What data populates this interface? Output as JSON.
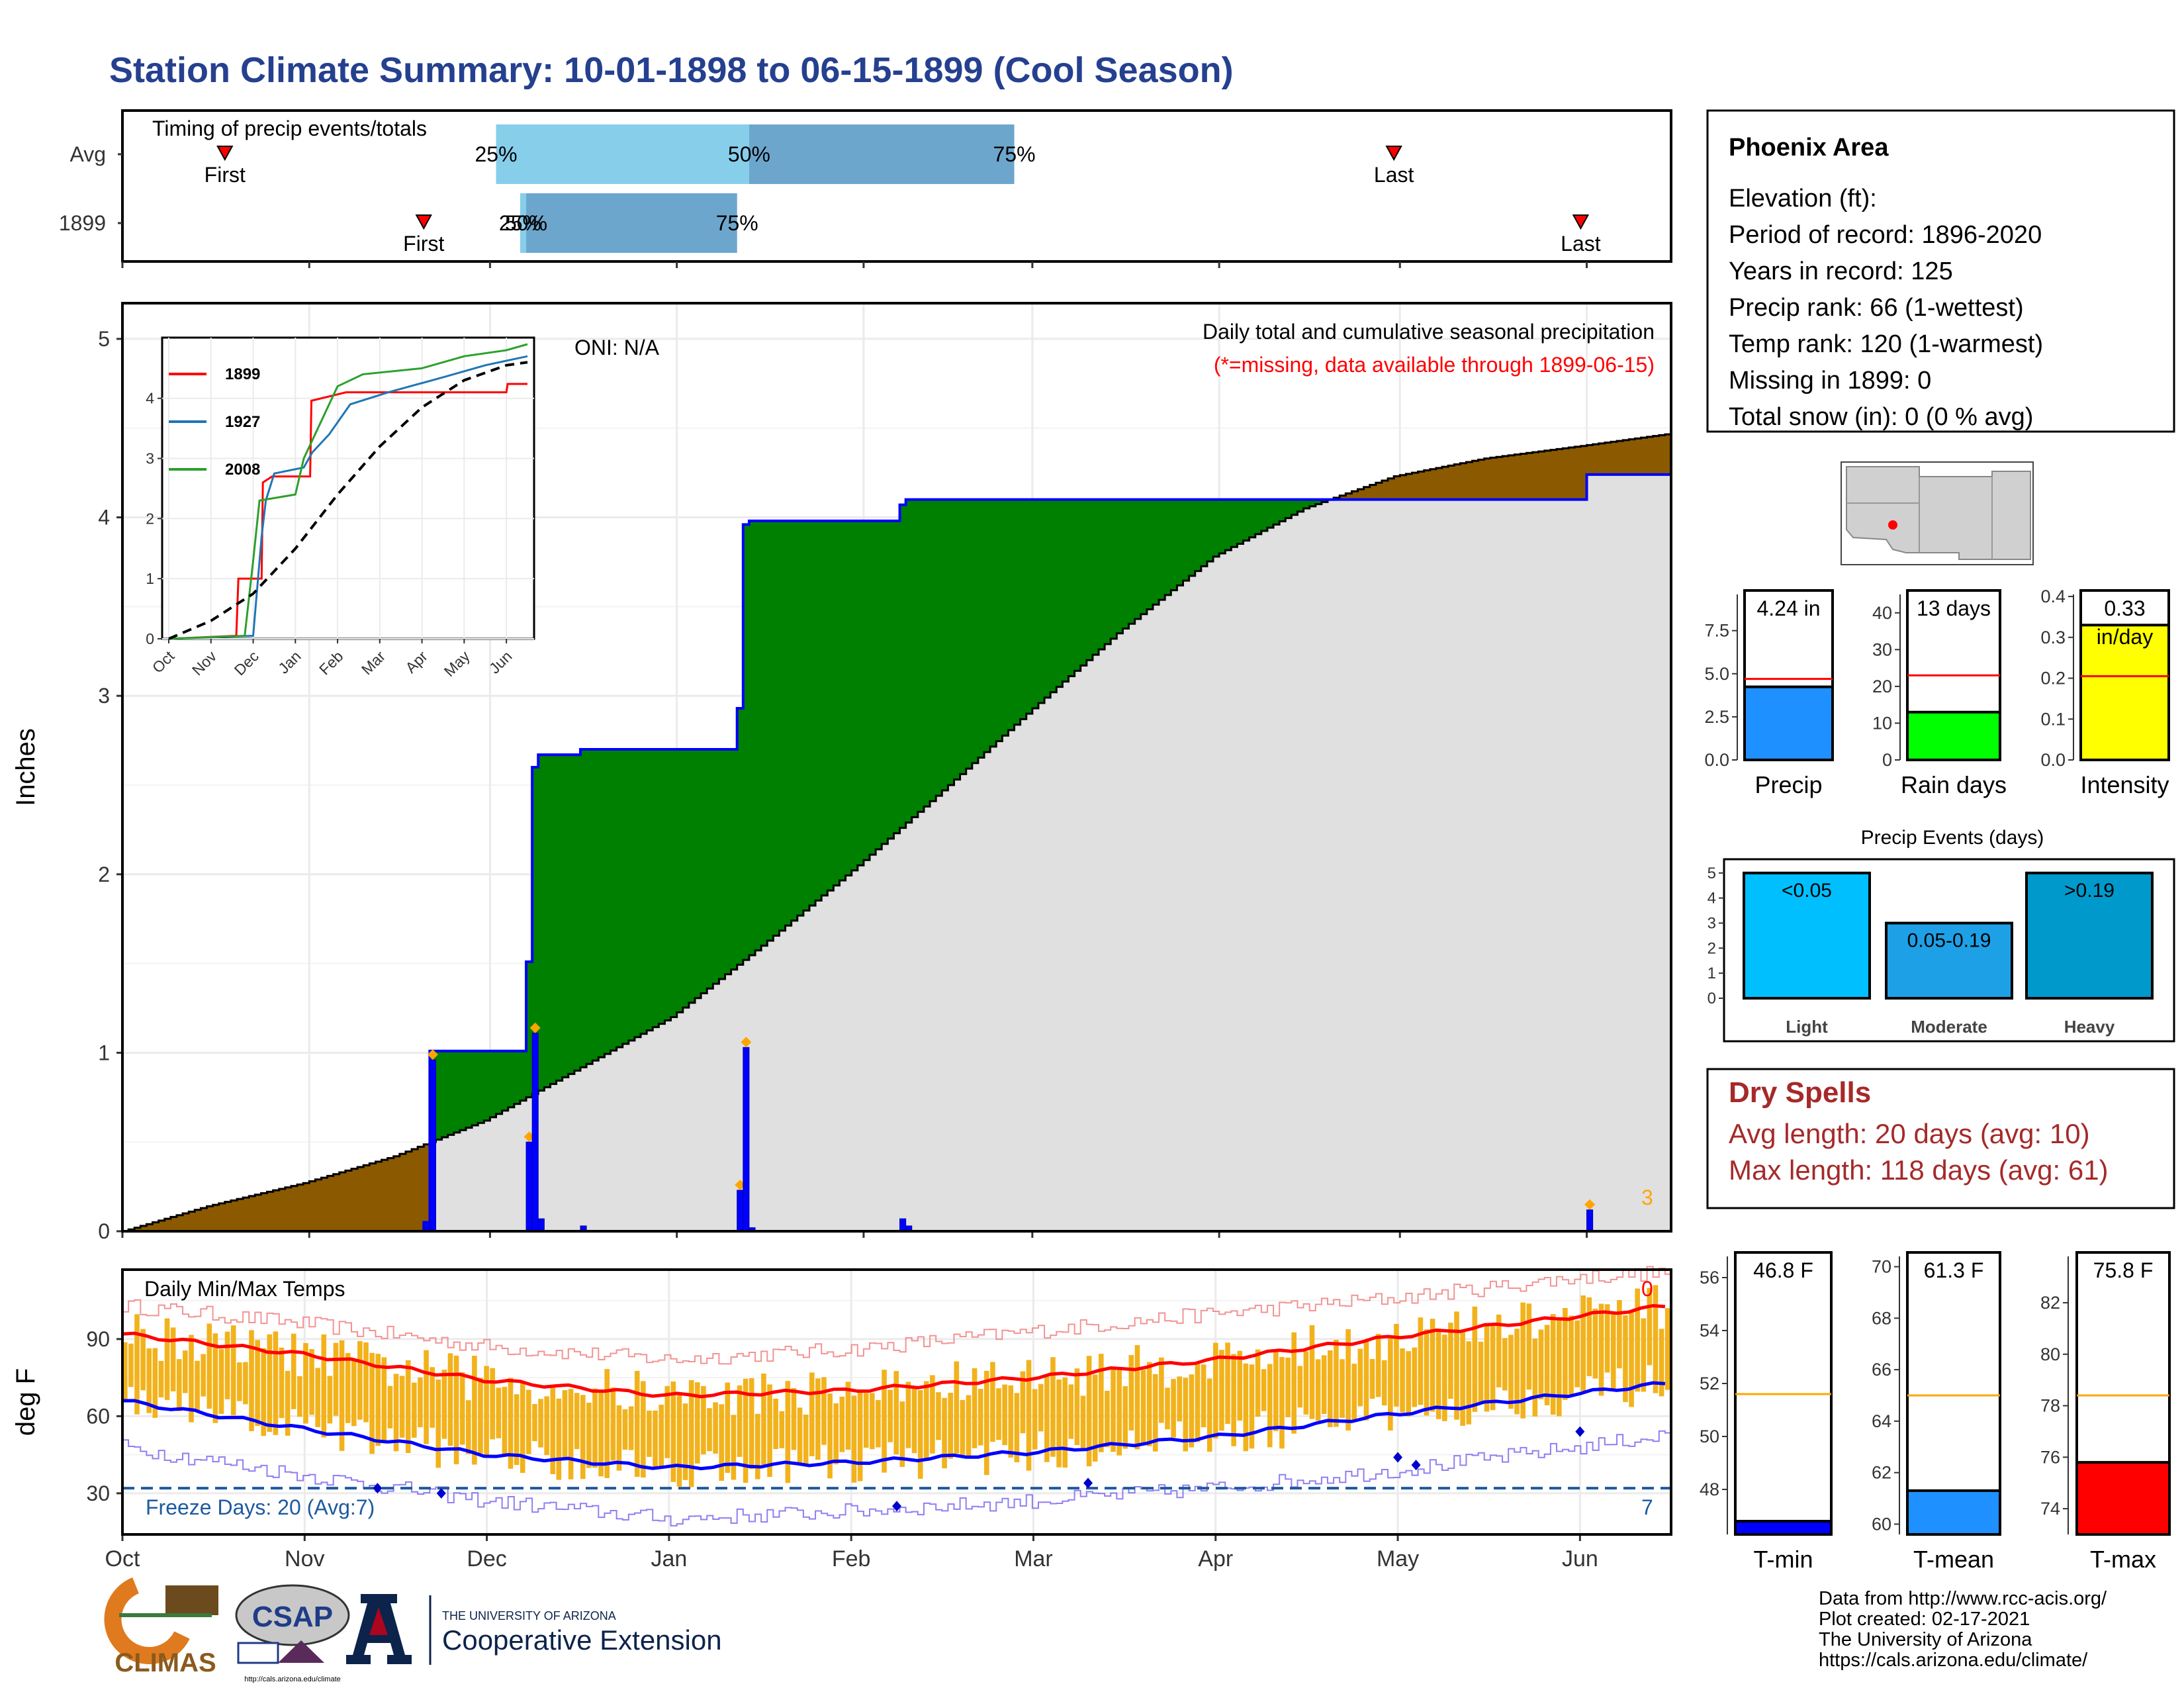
{
  "page": {
    "title": "Station Climate Summary: 10-01-1898 to 06-15-1899 (Cool Season)"
  },
  "colors": {
    "title": "#25408F",
    "brown": "#8B5A00",
    "green": "#008000",
    "gray_area": "#E0E0E0",
    "blue_line": "#0000FF",
    "bar_blue": "#1E90FF",
    "rain_green": "#00FF00",
    "intensity_yellow": "#FFFF00",
    "light_blue": "#00BFFF",
    "moderate_blue": "#1EA0E6",
    "heavy_blue": "#0099CC",
    "temp_bar": "#F2B21C",
    "red": "#FF0000",
    "dry_spell": "#A52A2A",
    "timing_light": "#87CEEB",
    "timing_dark": "#6CA6CD",
    "marker_orange": "#FFA500"
  },
  "timing": {
    "title": "Timing of precip events/totals",
    "rows": [
      {
        "label": "Avg",
        "first": "10-18",
        "last": "04-30",
        "q25": "12-02",
        "q50": "01-13",
        "q75": "02-26",
        "first_label": "First",
        "last_label": "Last",
        "q25_label": "25%",
        "q50_label": "50%",
        "q75_label": "75%"
      },
      {
        "label": "1899",
        "first": "11-20",
        "last": "05-31",
        "q25": "12-06",
        "q50": "12-07",
        "q75": "01-11",
        "first_label": "First",
        "last_label": "Last",
        "q25_label": "25%",
        "q50_label": "50%",
        "q75_label": "75%"
      }
    ]
  },
  "chart_data": [
    {
      "type": "area",
      "id": "main_precip",
      "title": "Daily total and cumulative seasonal precipitation",
      "subtitle": "(*=missing, data available through 1899-06-15)",
      "annotation": "ONI: N/A",
      "ylabel": "Inches",
      "ylim": [
        0,
        5.2
      ],
      "yticks": [
        0,
        1,
        2,
        3,
        4,
        5
      ],
      "x_range": [
        "1898-10-01",
        "1899-06-15"
      ],
      "x_ticks": [
        "1898-10-01",
        "1898-11-01",
        "1898-12-01",
        "1899-01-01",
        "1899-02-01",
        "1899-03-01",
        "1899-04-01",
        "1899-05-01",
        "1899-06-01"
      ],
      "corner_count": "3",
      "avg_cumulative": [
        [
          "1898-10-01",
          0.0
        ],
        [
          "1898-10-15",
          0.14
        ],
        [
          "1898-10-31",
          0.27
        ],
        [
          "1898-11-15",
          0.42
        ],
        [
          "1898-11-30",
          0.62
        ],
        [
          "1898-12-15",
          0.9
        ],
        [
          "1898-12-31",
          1.2
        ],
        [
          "1899-01-15",
          1.6
        ],
        [
          "1899-01-31",
          2.05
        ],
        [
          "1899-02-15",
          2.5
        ],
        [
          "1899-02-28",
          2.9
        ],
        [
          "1899-03-15",
          3.35
        ],
        [
          "1899-03-31",
          3.78
        ],
        [
          "1899-04-15",
          4.05
        ],
        [
          "1899-04-30",
          4.23
        ],
        [
          "1899-05-15",
          4.33
        ],
        [
          "1899-05-31",
          4.4
        ],
        [
          "1899-06-15",
          4.47
        ]
      ],
      "series": [
        {
          "name": "1899 cumulative",
          "points": [
            [
              "1898-10-01",
              0.0
            ],
            [
              "1898-11-20",
              0.05
            ],
            [
              "1898-11-21",
              1.01
            ],
            [
              "1898-12-06",
              1.01
            ],
            [
              "1898-12-07",
              1.51
            ],
            [
              "1898-12-08",
              2.6
            ],
            [
              "1898-12-09",
              2.67
            ],
            [
              "1898-12-15",
              2.67
            ],
            [
              "1898-12-16",
              2.7
            ],
            [
              "1899-01-10",
              2.7
            ],
            [
              "1899-01-11",
              2.93
            ],
            [
              "1899-01-12",
              3.96
            ],
            [
              "1899-01-13",
              3.98
            ],
            [
              "1899-02-06",
              3.98
            ],
            [
              "1899-02-07",
              4.07
            ],
            [
              "1899-02-08",
              4.1
            ],
            [
              "1899-05-31",
              4.1
            ],
            [
              "1899-06-01",
              4.24
            ],
            [
              "1899-06-15",
              4.24
            ]
          ]
        },
        {
          "name": "1899 daily",
          "points": [
            [
              "1898-11-20",
              0.05
            ],
            [
              "1898-11-21",
              0.96
            ],
            [
              "1898-12-07",
              0.5
            ],
            [
              "1898-12-08",
              1.11
            ],
            [
              "1898-12-09",
              0.07
            ],
            [
              "1898-12-16",
              0.03
            ],
            [
              "1899-01-11",
              0.23
            ],
            [
              "1899-01-12",
              1.03
            ],
            [
              "1899-01-13",
              0.02
            ],
            [
              "1899-02-07",
              0.07
            ],
            [
              "1899-02-08",
              0.03
            ],
            [
              "1899-06-01",
              0.12
            ]
          ]
        }
      ]
    },
    {
      "type": "line",
      "id": "inset_cumulative",
      "x_ticks": [
        "Oct",
        "Nov",
        "Dec",
        "Jan",
        "Feb",
        "Mar",
        "Apr",
        "May",
        "Jun"
      ],
      "yticks": [
        0,
        1,
        2,
        3,
        4
      ],
      "ylim": [
        0,
        4.9
      ],
      "series": [
        {
          "name": "1899",
          "color": "#FF0000",
          "points": [
            [
              0,
              0
            ],
            [
              1.6,
              0.05
            ],
            [
              1.65,
              1.0
            ],
            [
              2.2,
              1.0
            ],
            [
              2.23,
              2.6
            ],
            [
              2.45,
              2.7
            ],
            [
              3.35,
              2.7
            ],
            [
              3.38,
              3.96
            ],
            [
              4.2,
              4.1
            ],
            [
              8.0,
              4.1
            ],
            [
              8.03,
              4.24
            ],
            [
              8.5,
              4.24
            ]
          ]
        },
        {
          "name": "1927",
          "color": "#1F77B4",
          "points": [
            [
              0,
              0
            ],
            [
              2.0,
              0.05
            ],
            [
              2.2,
              1.7
            ],
            [
              2.3,
              2.3
            ],
            [
              2.5,
              2.75
            ],
            [
              3.2,
              2.85
            ],
            [
              3.4,
              3.1
            ],
            [
              3.8,
              3.4
            ],
            [
              4.3,
              3.9
            ],
            [
              5.2,
              4.1
            ],
            [
              6.5,
              4.35
            ],
            [
              7.5,
              4.55
            ],
            [
              8.5,
              4.7
            ]
          ]
        },
        {
          "name": "2008",
          "color": "#2CA02C",
          "points": [
            [
              0,
              0
            ],
            [
              1.8,
              0.05
            ],
            [
              2.0,
              1.3
            ],
            [
              2.15,
              2.3
            ],
            [
              3.0,
              2.4
            ],
            [
              3.2,
              3.0
            ],
            [
              3.6,
              3.6
            ],
            [
              4.0,
              4.2
            ],
            [
              4.6,
              4.4
            ],
            [
              6.0,
              4.5
            ],
            [
              7.0,
              4.7
            ],
            [
              8.0,
              4.8
            ],
            [
              8.5,
              4.9
            ]
          ]
        },
        {
          "name": "avg",
          "color": "#000000",
          "dashed": true,
          "points": [
            [
              0,
              0
            ],
            [
              1,
              0.3
            ],
            [
              2,
              0.75
            ],
            [
              3,
              1.5
            ],
            [
              4,
              2.4
            ],
            [
              5,
              3.2
            ],
            [
              6,
              3.85
            ],
            [
              7,
              4.3
            ],
            [
              8,
              4.55
            ],
            [
              8.5,
              4.6
            ]
          ]
        }
      ]
    },
    {
      "type": "bar",
      "id": "precip_total",
      "categories": [
        "Precip"
      ],
      "values": [
        4.24
      ],
      "avg_line": 4.7,
      "ylim": [
        0,
        9.6
      ],
      "yticks": [
        0,
        2.5,
        5,
        7.5
      ],
      "ytick_labels": [
        "0.0",
        "2.5",
        "5.0",
        "7.5"
      ],
      "label": "4.24 in"
    },
    {
      "type": "bar",
      "id": "rain_days",
      "categories": [
        "Rain days"
      ],
      "values": [
        13
      ],
      "avg_line": 23,
      "ylim": [
        0,
        45
      ],
      "yticks": [
        0,
        10,
        20,
        30,
        40
      ],
      "label": "13 days"
    },
    {
      "type": "bar",
      "id": "intensity",
      "categories": [
        "Intensity"
      ],
      "values": [
        0.33
      ],
      "avg_line": 0.205,
      "ylim": [
        0,
        0.405
      ],
      "yticks": [
        0,
        0.1,
        0.2,
        0.3,
        0.4
      ],
      "ytick_labels": [
        "0.0",
        "0.1",
        "0.2",
        "0.3",
        "0.4"
      ],
      "label": "0.33",
      "unit_label": "in/day"
    },
    {
      "type": "bar",
      "id": "precip_events",
      "title": "Precip Events (days)",
      "categories": [
        "Light",
        "Moderate",
        "Heavy"
      ],
      "bin_labels": [
        "<0.05",
        "0.05-0.19",
        ">0.19"
      ],
      "values": [
        5,
        3,
        5
      ],
      "ylim": [
        0,
        5.1
      ],
      "yticks": [
        0,
        1,
        2,
        3,
        4,
        5
      ]
    },
    {
      "type": "bar",
      "id": "daily_temps",
      "title": "Daily Min/Max Temps",
      "ylabel": "deg F",
      "ylim": [
        14,
        117
      ],
      "yticks": [
        30,
        60,
        90
      ],
      "freeze_line": 32,
      "freeze_label": "Freeze Days: 20 (Avg:7)",
      "count_top": "0",
      "count_bottom": "7",
      "x_ticks": [
        "Oct",
        "Nov",
        "Dec",
        "Jan",
        "Feb",
        "Mar",
        "Apr",
        "May",
        "Jun"
      ],
      "avg_max": [
        [
          0,
          92
        ],
        [
          1,
          84
        ],
        [
          2,
          74
        ],
        [
          3,
          68
        ],
        [
          4,
          70
        ],
        [
          5,
          75
        ],
        [
          6,
          82
        ],
        [
          7,
          91
        ],
        [
          8,
          99
        ],
        [
          8.5,
          103
        ]
      ],
      "avg_min": [
        [
          0,
          66
        ],
        [
          1,
          55
        ],
        [
          2,
          45
        ],
        [
          3,
          40
        ],
        [
          4,
          42
        ],
        [
          5,
          46
        ],
        [
          6,
          52
        ],
        [
          7,
          61
        ],
        [
          8,
          69
        ],
        [
          8.5,
          73
        ]
      ],
      "record_max": [
        [
          0,
          103
        ],
        [
          1,
          96
        ],
        [
          2,
          87
        ],
        [
          3,
          82
        ],
        [
          4,
          86
        ],
        [
          5,
          93
        ],
        [
          6,
          100
        ],
        [
          7,
          106
        ],
        [
          8,
          114
        ],
        [
          8.5,
          116
        ]
      ],
      "record_min": [
        [
          0,
          48
        ],
        [
          1,
          37
        ],
        [
          2,
          27
        ],
        [
          3,
          20
        ],
        [
          4,
          23
        ],
        [
          5,
          27
        ],
        [
          6,
          32
        ],
        [
          7,
          39
        ],
        [
          8,
          48
        ],
        [
          8.5,
          53
        ]
      ],
      "freeze_points": [
        [
          1.4,
          32
        ],
        [
          1.75,
          30
        ],
        [
          4.25,
          25
        ],
        [
          5.3,
          34
        ],
        [
          7.0,
          44
        ],
        [
          7.1,
          41
        ],
        [
          8.0,
          54
        ]
      ]
    },
    {
      "type": "bar",
      "id": "tmin",
      "categories": [
        "T-min"
      ],
      "values": [
        46.8
      ],
      "avg_line": 51.6,
      "ylim": [
        46.3,
        56.8
      ],
      "yticks": [
        48,
        50,
        52,
        54,
        56
      ],
      "label": "46.8 F"
    },
    {
      "type": "bar",
      "id": "tmean",
      "categories": [
        "T-mean"
      ],
      "values": [
        61.3
      ],
      "avg_line": 65,
      "ylim": [
        59.6,
        70.4
      ],
      "yticks": [
        60,
        62,
        64,
        66,
        68,
        70
      ],
      "label": "61.3 F"
    },
    {
      "type": "bar",
      "id": "tmax",
      "categories": [
        "T-max"
      ],
      "values": [
        75.8
      ],
      "avg_line": 78.4,
      "ylim": [
        73,
        83.8
      ],
      "yticks": [
        74,
        76,
        78,
        80,
        82
      ],
      "label": "75.8 F"
    }
  ],
  "station": {
    "name": "Phoenix Area",
    "lines": [
      "Elevation (ft):",
      "Period of record: 1896-2020",
      "Years in record: 125",
      "Precip rank: 66 (1-wettest)",
      "Temp rank: 120 (1-warmest)",
      "Missing in 1899: 0",
      "Total snow (in): 0 (0 % avg)"
    ]
  },
  "dry_spells": {
    "title": "Dry Spells",
    "avg": "Avg length: 20 days (avg: 10)",
    "max": "Max length: 118 days (avg: 61)"
  },
  "footer": {
    "lines": [
      "Data from http://www.rcc-acis.org/",
      "Plot created: 02-17-2021",
      "The University of Arizona",
      "https://cals.arizona.edu/climate/"
    ],
    "climas": "CLIMAS",
    "csap": "CSAP",
    "csap_url": "http://cals.arizona.edu/climate",
    "ua_small": "THE UNIVERSITY OF ARIZONA",
    "ua_big": "Cooperative Extension"
  }
}
